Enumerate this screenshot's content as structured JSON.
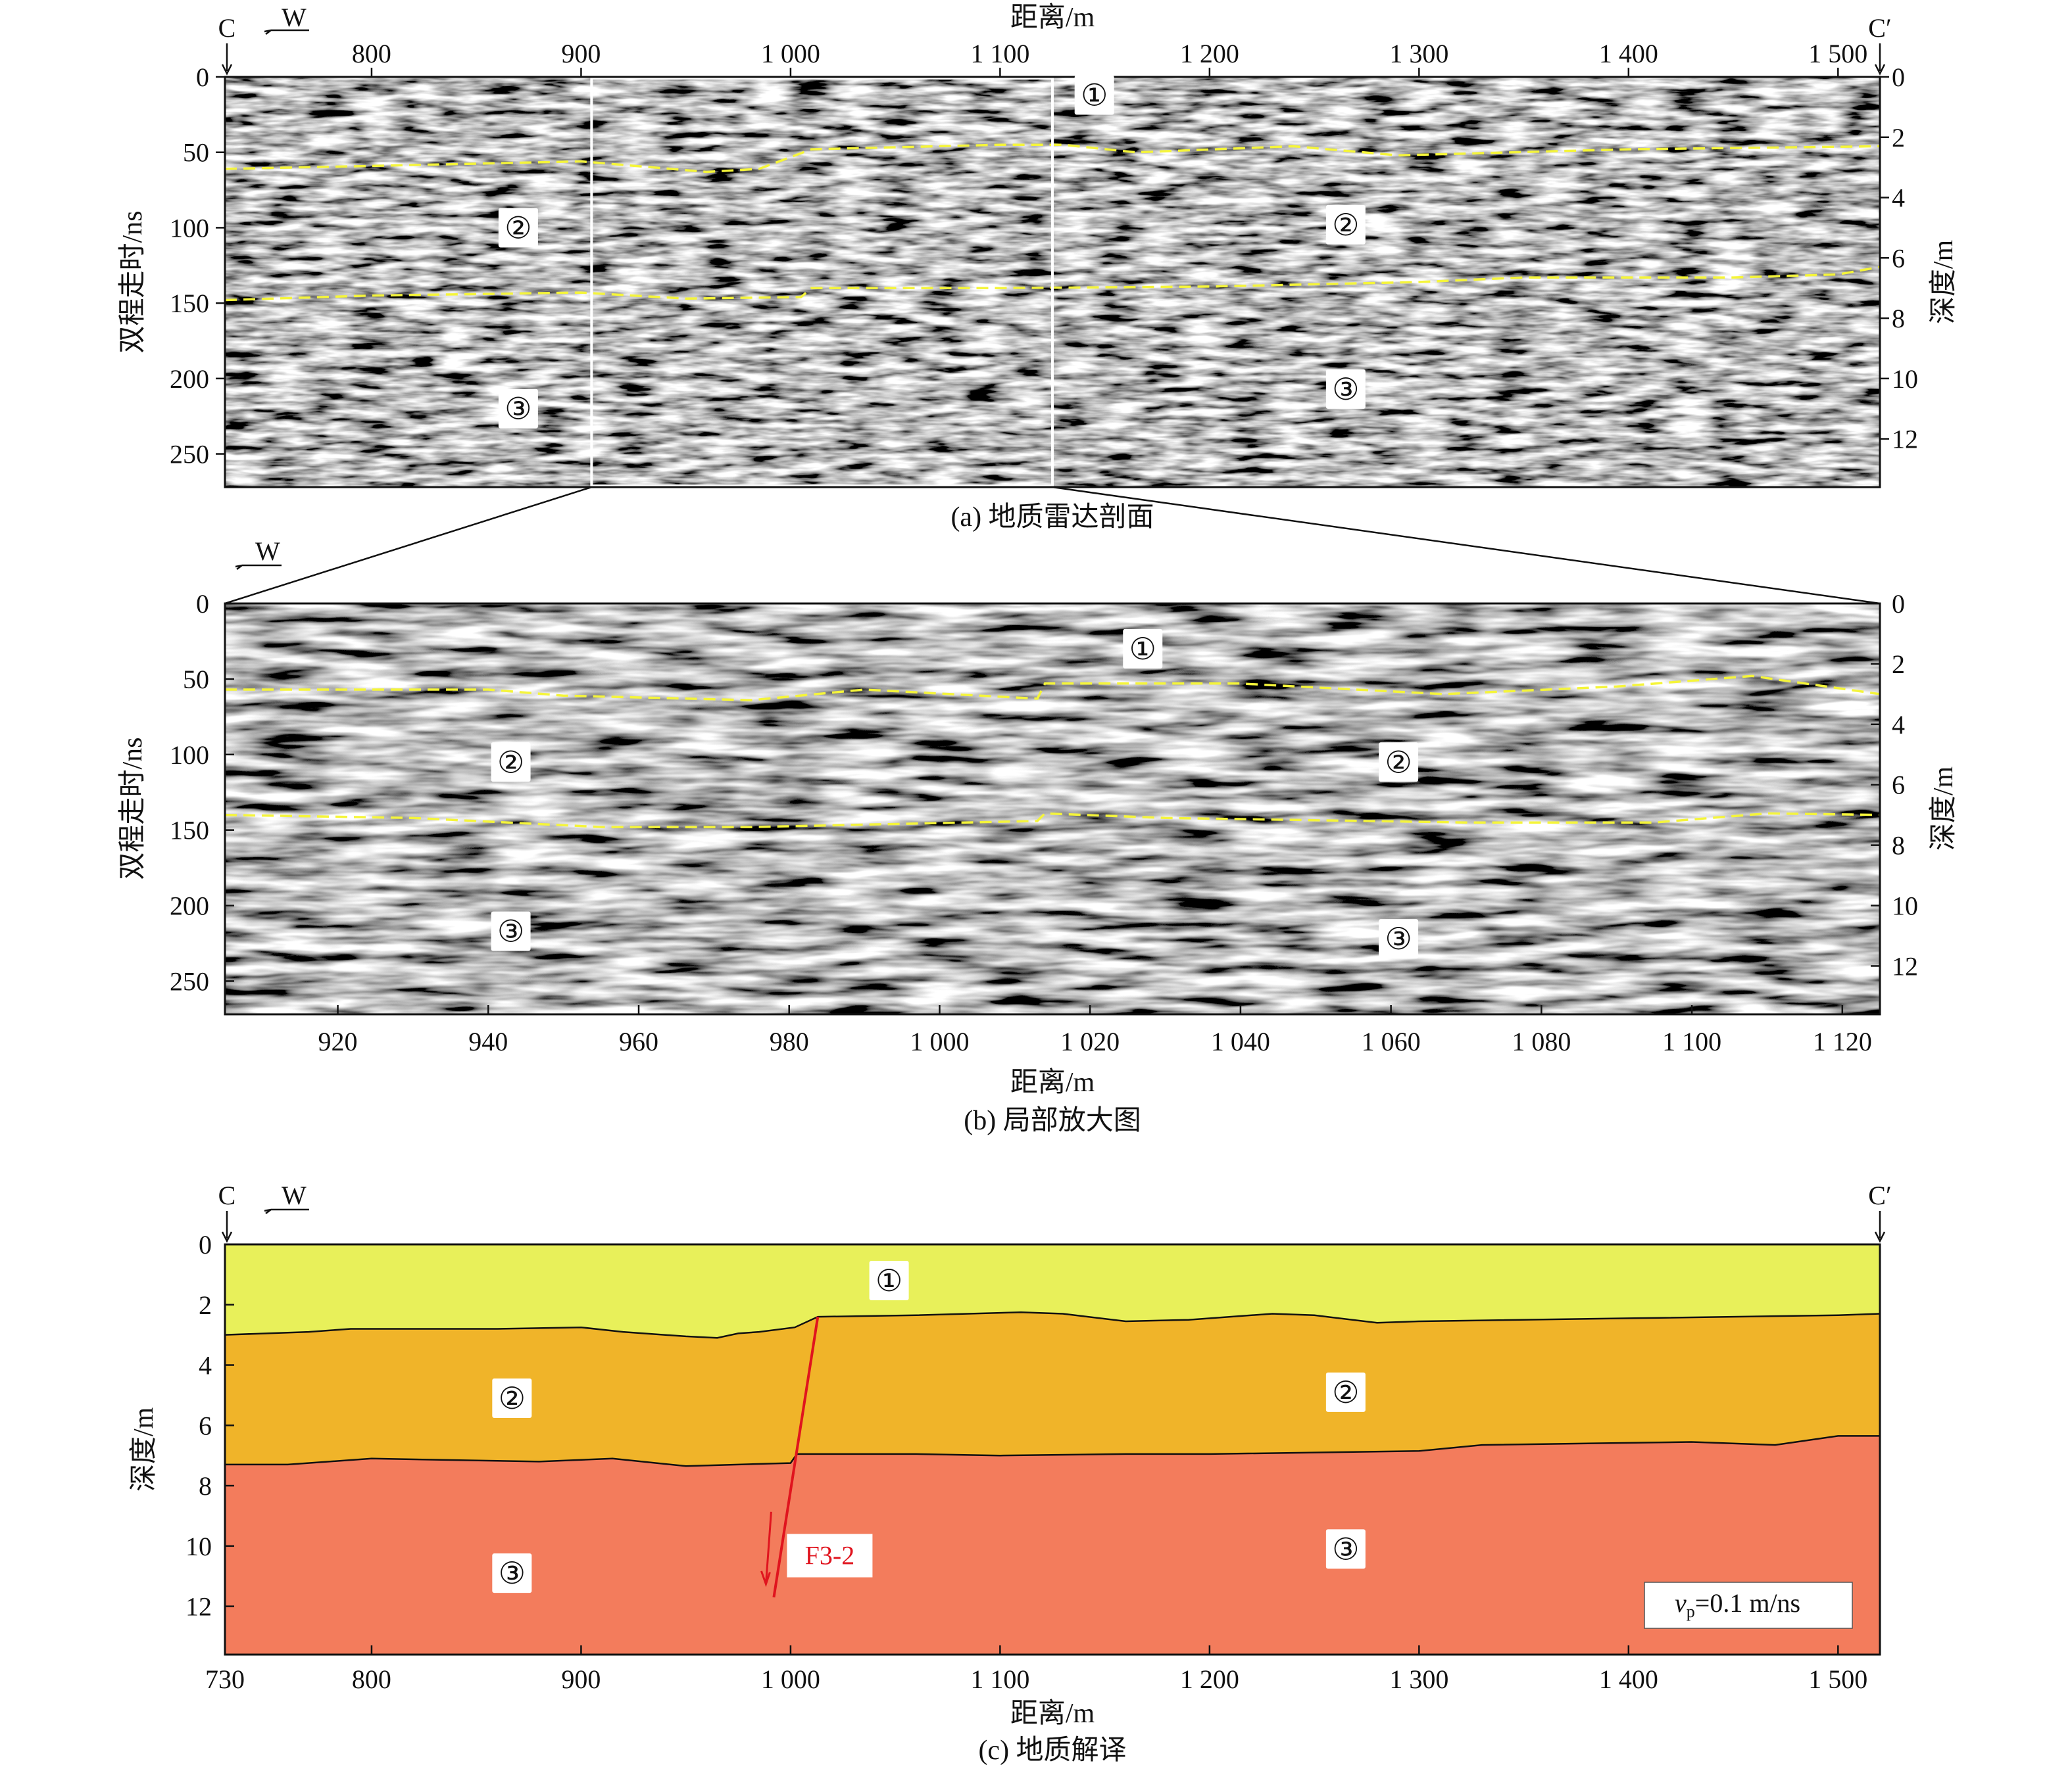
{
  "panels": {
    "a": {
      "caption": "(a) 地质雷达剖面",
      "xlabel": "距离/m",
      "ylabel_left": "双程走时/ns",
      "ylabel_right": "深度/m",
      "x_ticks": [
        "800",
        "900",
        "1 000",
        "1 100",
        "1 200",
        "1 300",
        "1 400",
        "1 500"
      ],
      "y_ticks_left": [
        "0",
        "50",
        "100",
        "150",
        "200",
        "250"
      ],
      "y_ticks_right": [
        "0",
        "2",
        "4",
        "6",
        "8",
        "10",
        "12"
      ],
      "marker_start": "C",
      "marker_end": "C′",
      "direction": "W",
      "zones": [
        {
          "label": "①",
          "x": 1145,
          "t": 12
        },
        {
          "label": "②",
          "x": 870,
          "t": 100
        },
        {
          "label": "②",
          "x": 1265,
          "t": 98
        },
        {
          "label": "③",
          "x": 870,
          "t": 220
        },
        {
          "label": "③",
          "x": 1265,
          "t": 207
        }
      ]
    },
    "b": {
      "caption": "(b) 局部放大图",
      "xlabel": "距离/m",
      "ylabel_left": "双程走时/ns",
      "ylabel_right": "深度/m",
      "x_ticks": [
        "920",
        "940",
        "960",
        "980",
        "1 000",
        "1 020",
        "1 040",
        "1 060",
        "1 080",
        "1 100",
        "1 120"
      ],
      "y_ticks_left": [
        "0",
        "50",
        "100",
        "150",
        "200",
        "250"
      ],
      "y_ticks_right": [
        "0",
        "2",
        "4",
        "6",
        "8",
        "10",
        "12"
      ],
      "direction": "W",
      "zones": [
        {
          "label": "①",
          "x": 1027,
          "t": 30
        },
        {
          "label": "②",
          "x": 943,
          "t": 105
        },
        {
          "label": "②",
          "x": 1061,
          "t": 105
        },
        {
          "label": "③",
          "x": 943,
          "t": 217
        },
        {
          "label": "③",
          "x": 1061,
          "t": 222
        }
      ]
    },
    "c": {
      "caption": "(c) 地质解译",
      "xlabel": "距离/m",
      "ylabel": "深度/m",
      "x_ticks": [
        "730",
        "800",
        "900",
        "1 000",
        "1 100",
        "1 200",
        "1 300",
        "1 400",
        "1 500"
      ],
      "y_ticks": [
        "0",
        "2",
        "4",
        "6",
        "8",
        "10",
        "12"
      ],
      "marker_start": "C",
      "marker_end": "C′",
      "direction": "W",
      "fault_label": "F3-2",
      "velocity_label_v": "v",
      "velocity_label_sub": "p",
      "velocity_label_rest": "=0.1 m/ns",
      "zones": [
        {
          "label": "①",
          "x": 1047,
          "d": 1.2
        },
        {
          "label": "②",
          "x": 867,
          "d": 5.1
        },
        {
          "label": "②",
          "x": 1265,
          "d": 4.9
        },
        {
          "label": "③",
          "x": 867,
          "d": 10.9
        },
        {
          "label": "③",
          "x": 1265,
          "d": 10.1
        }
      ]
    }
  },
  "chart_data": [
    {
      "type": "heatmap",
      "title": "(a) 地质雷达剖面",
      "xlabel": "距离/m",
      "ylabel": "双程走时/ns",
      "ylabel_right": "深度/m",
      "xlim": [
        730,
        1520
      ],
      "ylim": [
        0,
        272
      ],
      "ylim_right_depth": [
        0,
        13.6
      ],
      "zoom_window_x": [
        905,
        1125
      ],
      "interfaces": [
        {
          "name": "interface-1-2",
          "x": [
            730,
            800,
            900,
            960,
            985,
            1010,
            1100,
            1130,
            1165,
            1240,
            1290,
            1400,
            1520
          ],
          "t": [
            61,
            59,
            56,
            63,
            61,
            48,
            45,
            45,
            50,
            46,
            52,
            48,
            46
          ]
        },
        {
          "name": "interface-2-3",
          "x": [
            730,
            800,
            900,
            950,
            1005,
            1010,
            1100,
            1200,
            1300,
            1350,
            1450,
            1500,
            1520
          ],
          "t": [
            148,
            145,
            143,
            147,
            146,
            140,
            140,
            139,
            136,
            133,
            133,
            131,
            126
          ]
        }
      ]
    },
    {
      "type": "heatmap",
      "title": "(b) 局部放大图",
      "xlabel": "距离/m",
      "ylabel": "双程走时/ns",
      "ylabel_right": "深度/m",
      "xlim": [
        905,
        1125
      ],
      "ylim": [
        0,
        272
      ],
      "interfaces": [
        {
          "name": "interface-1-2",
          "x": [
            905,
            940,
            950,
            975,
            990,
            1013,
            1014,
            1040,
            1067,
            1090,
            1108,
            1125
          ],
          "t": [
            57,
            57,
            61,
            64,
            57,
            63,
            53,
            53,
            60,
            55,
            48,
            60
          ]
        },
        {
          "name": "interface-2-3",
          "x": [
            905,
            930,
            955,
            975,
            1013,
            1014,
            1030,
            1070,
            1095,
            1110,
            1125
          ],
          "t": [
            140,
            142,
            148,
            148,
            144,
            139,
            142,
            145,
            145,
            139,
            140
          ]
        }
      ]
    },
    {
      "type": "area",
      "title": "(c) 地质解译",
      "xlabel": "距离/m",
      "ylabel": "深度/m",
      "xlim": [
        730,
        1520
      ],
      "ylim": [
        0,
        13.6
      ],
      "layers": [
        {
          "label": "①",
          "color": "#e8f05a"
        },
        {
          "label": "②",
          "color": "#f0b429"
        },
        {
          "label": "③",
          "color": "#f37c5c"
        }
      ],
      "interfaces": [
        {
          "name": "boundary-1-2",
          "x": [
            730,
            770,
            790,
            860,
            900,
            920,
            950,
            965,
            975,
            985,
            1002,
            1013,
            1060,
            1110,
            1130,
            1160,
            1190,
            1230,
            1250,
            1280,
            1300,
            1400,
            1500,
            1520
          ],
          "d": [
            3.0,
            2.9,
            2.8,
            2.8,
            2.75,
            2.9,
            3.05,
            3.1,
            2.95,
            2.9,
            2.75,
            2.4,
            2.35,
            2.25,
            2.3,
            2.55,
            2.5,
            2.3,
            2.35,
            2.6,
            2.55,
            2.45,
            2.35,
            2.3
          ]
        },
        {
          "name": "boundary-2-3",
          "x": [
            730,
            760,
            800,
            880,
            915,
            950,
            1000,
            1003,
            1060,
            1100,
            1160,
            1200,
            1300,
            1330,
            1430,
            1470,
            1500,
            1520
          ],
          "d": [
            7.3,
            7.3,
            7.1,
            7.2,
            7.1,
            7.35,
            7.25,
            6.95,
            6.95,
            7.0,
            6.95,
            6.95,
            6.85,
            6.65,
            6.55,
            6.65,
            6.35,
            6.35
          ]
        }
      ],
      "fault": {
        "name": "F3-2",
        "x": [
          1013,
          992
        ],
        "d": [
          2.4,
          11.7
        ]
      }
    }
  ]
}
